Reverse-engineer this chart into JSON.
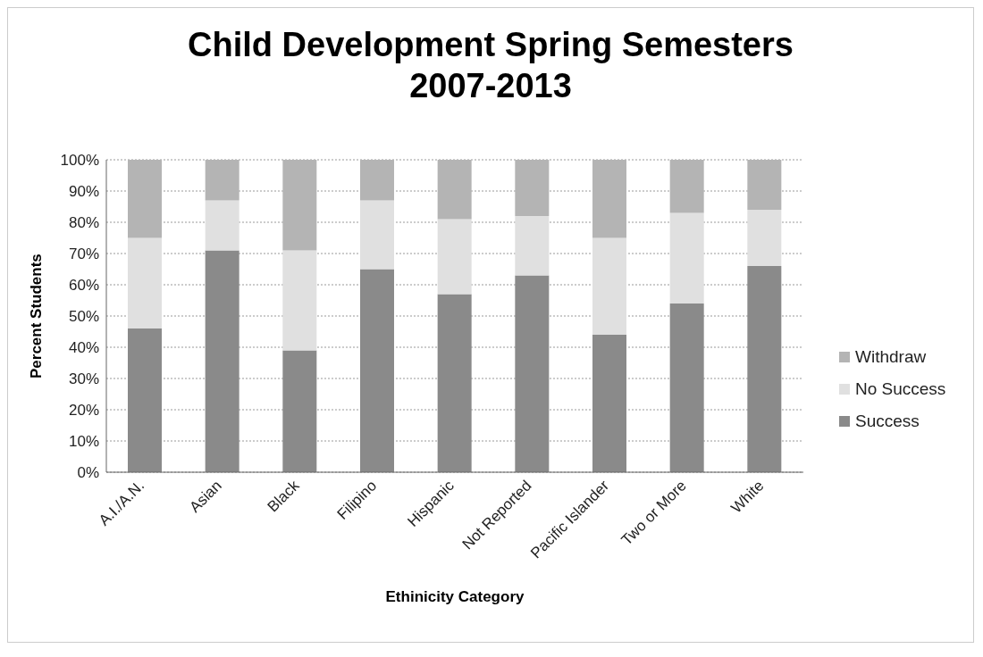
{
  "chart_data": {
    "type": "bar",
    "stacked": true,
    "title": "Child Development Spring Semesters 2007-2013",
    "xlabel": "Ethinicity Category",
    "ylabel": "Percent Students",
    "categories": [
      "A.I./A.N.",
      "Asian",
      "Black",
      "Filipino",
      "Hispanic",
      "Not Reported",
      "Pacific Islander",
      "Two or More",
      "White"
    ],
    "series": [
      {
        "name": "Success",
        "color": "#8a8a8a",
        "values": [
          46,
          71,
          39,
          65,
          57,
          63,
          44,
          54,
          66
        ]
      },
      {
        "name": "No Success",
        "color": "#e0e0e0",
        "values": [
          29,
          16,
          32,
          22,
          24,
          19,
          31,
          29,
          18
        ]
      },
      {
        "name": "Withdraw",
        "color": "#b4b4b4",
        "values": [
          25,
          13,
          29,
          13,
          19,
          18,
          25,
          17,
          16
        ]
      }
    ],
    "ylim": [
      0,
      100
    ],
    "yticks": [
      {
        "value": 0,
        "label": "0%"
      },
      {
        "value": 10,
        "label": "10%"
      },
      {
        "value": 20,
        "label": "20%"
      },
      {
        "value": 30,
        "label": "30%"
      },
      {
        "value": 40,
        "label": "40%"
      },
      {
        "value": 50,
        "label": "50%"
      },
      {
        "value": 60,
        "label": "60%"
      },
      {
        "value": 70,
        "label": "70%"
      },
      {
        "value": 80,
        "label": "80%"
      },
      {
        "value": 90,
        "label": "90%"
      },
      {
        "value": 100,
        "label": "100%"
      }
    ],
    "grid": "y",
    "legend": "right"
  }
}
